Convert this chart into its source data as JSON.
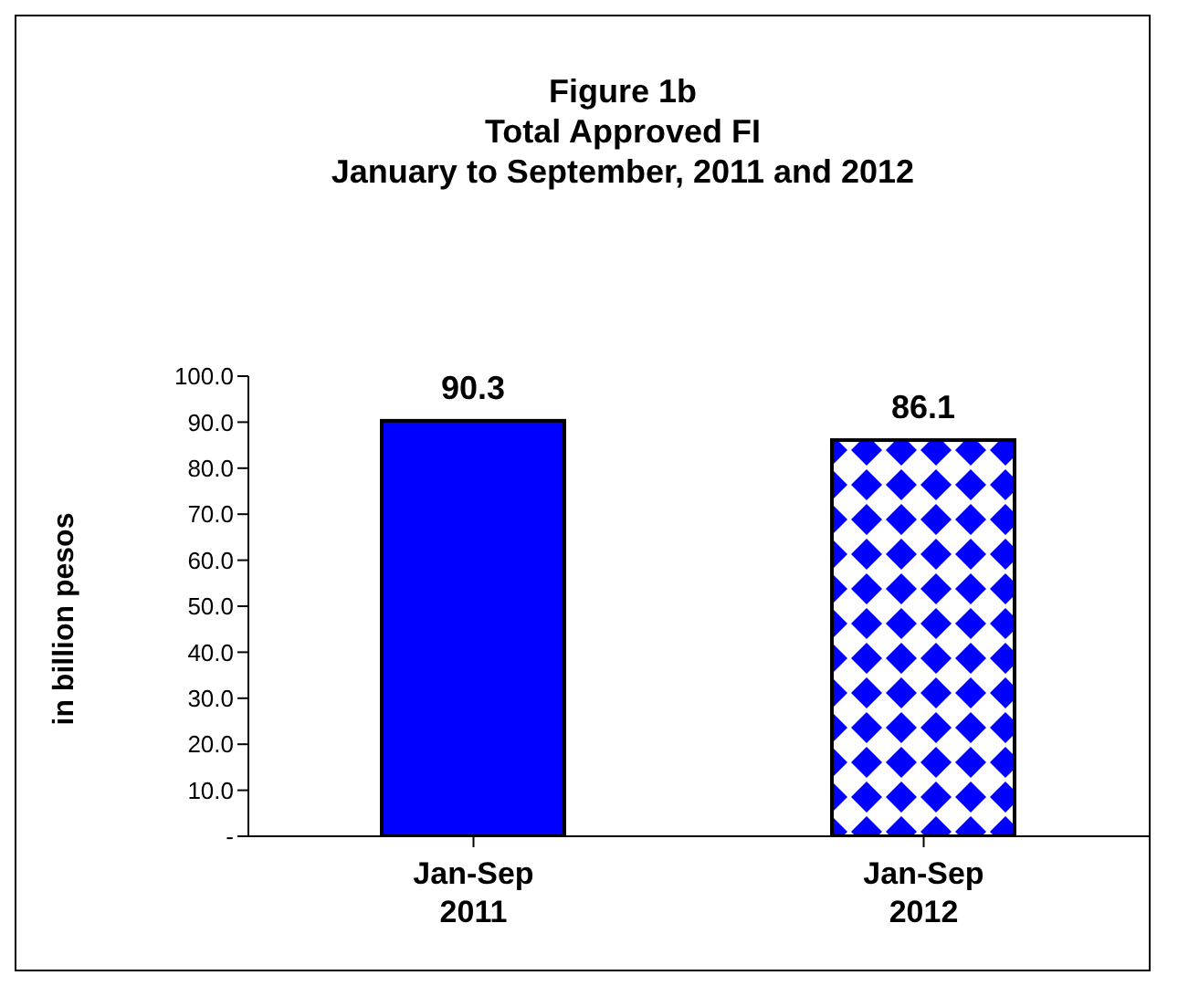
{
  "chart_data": {
    "type": "bar",
    "title": "Figure 1b\nTotal Approved FI\nJanuary to September, 2011 and 2012",
    "categories": [
      "Jan-Sep\n2011",
      "Jan-Sep\n2012"
    ],
    "values": [
      90.3,
      86.1
    ],
    "colors": [
      "#0000ff",
      "#0000ff"
    ],
    "ylabel": "in billion pesos",
    "ylim": [
      0,
      100
    ],
    "yticks": [
      {
        "value": 0,
        "label": "-"
      },
      {
        "value": 10,
        "label": "10.0"
      },
      {
        "value": 20,
        "label": "20.0"
      },
      {
        "value": 30,
        "label": "30.0"
      },
      {
        "value": 40,
        "label": "40.0"
      },
      {
        "value": 50,
        "label": "50.0"
      },
      {
        "value": 60,
        "label": "60.0"
      },
      {
        "value": 70,
        "label": "70.0"
      },
      {
        "value": 80,
        "label": "80.0"
      },
      {
        "value": 90,
        "label": "90.0"
      },
      {
        "value": 100,
        "label": "100.0"
      }
    ],
    "data_labels": true,
    "grid": false
  }
}
